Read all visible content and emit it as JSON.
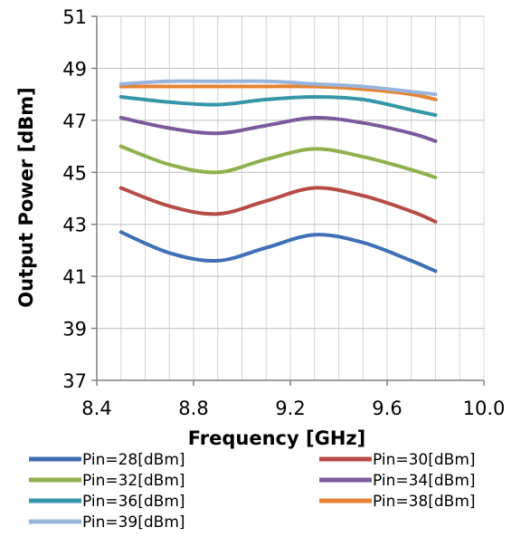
{
  "chart_data": {
    "type": "line",
    "title": "",
    "xlabel": "Frequency [GHz]",
    "ylabel": "Output Power [dBm]",
    "xlim": [
      8.4,
      10.0
    ],
    "ylim": [
      37,
      51
    ],
    "x_ticks": [
      "8.4",
      "8.8",
      "9.2",
      "9.6",
      "10.0"
    ],
    "y_ticks": [
      "37",
      "39",
      "41",
      "43",
      "45",
      "47",
      "49",
      "51"
    ],
    "grid": true,
    "legend_position": "bottom",
    "x": [
      8.5,
      8.7,
      8.9,
      9.1,
      9.3,
      9.5,
      9.7,
      9.8
    ],
    "series": [
      {
        "name": "Pin=28[dBm]",
        "color": "#3F6FB4",
        "values": [
          42.7,
          41.9,
          41.6,
          42.1,
          42.6,
          42.3,
          41.6,
          41.2
        ]
      },
      {
        "name": "Pin=30[dBm]",
        "color": "#B64C46",
        "values": [
          44.4,
          43.7,
          43.4,
          43.9,
          44.4,
          44.1,
          43.5,
          43.1
        ]
      },
      {
        "name": "Pin=32[dBm]",
        "color": "#8FB04C",
        "values": [
          46.0,
          45.3,
          45.0,
          45.5,
          45.9,
          45.6,
          45.1,
          44.8
        ]
      },
      {
        "name": "Pin=34[dBm]",
        "color": "#7A5A9C",
        "values": [
          47.1,
          46.7,
          46.5,
          46.8,
          47.1,
          46.9,
          46.5,
          46.2
        ]
      },
      {
        "name": "Pin=36[dBm]",
        "color": "#3496A8",
        "values": [
          47.9,
          47.7,
          47.6,
          47.8,
          47.9,
          47.8,
          47.4,
          47.2
        ]
      },
      {
        "name": "Pin=38[dBm]",
        "color": "#E48433",
        "values": [
          48.3,
          48.3,
          48.3,
          48.3,
          48.3,
          48.2,
          48.0,
          47.8
        ]
      },
      {
        "name": "Pin=39[dBm]",
        "color": "#98B4DC",
        "values": [
          48.4,
          48.5,
          48.5,
          48.5,
          48.4,
          48.3,
          48.1,
          48.0
        ]
      }
    ]
  }
}
